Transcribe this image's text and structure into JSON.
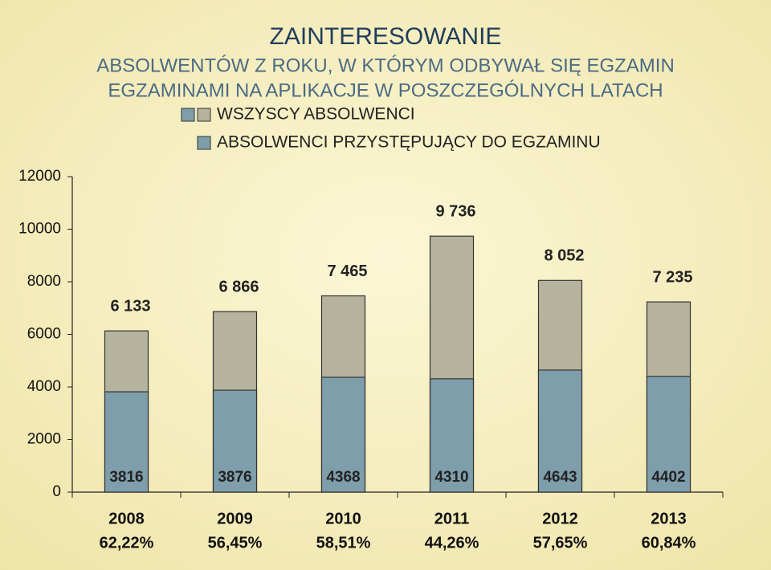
{
  "chart_data": {
    "type": "bar",
    "title": "ZAINTERESOWANIE",
    "subtitle": [
      "ABSOLWENTÓW Z ROKU, W KTÓRYM ODBYWAŁ SIĘ EGZAMIN",
      "EGZAMINAMI NA APLIKACJE W POSZCZEGÓLNYCH LATACH"
    ],
    "categories": [
      "2008",
      "2009",
      "2010",
      "2011",
      "2012",
      "2013"
    ],
    "share_labels": [
      "62,22%",
      "56,45%",
      "58,51%",
      "44,26%",
      "57,65%",
      "60,84%"
    ],
    "series": [
      {
        "name": "WSZYSCY ABSOLWENCI",
        "color": "#b5b39d",
        "values": [
          6133,
          6866,
          7465,
          9736,
          8052,
          7235
        ],
        "value_labels": [
          "6 133",
          "6 866",
          "7 465",
          "9 736",
          "8 052",
          "7 235"
        ]
      },
      {
        "name": "ABSOLWENCI PRZYSTĘPUJĄCY DO EGZAMINU",
        "color": "#7f9eab",
        "values": [
          3816,
          3876,
          4368,
          4310,
          4643,
          4402
        ]
      }
    ],
    "overlap": true,
    "ylim": [
      0,
      12000
    ],
    "yticks": [
      0,
      2000,
      4000,
      6000,
      8000,
      10000,
      12000
    ],
    "grid": false
  }
}
